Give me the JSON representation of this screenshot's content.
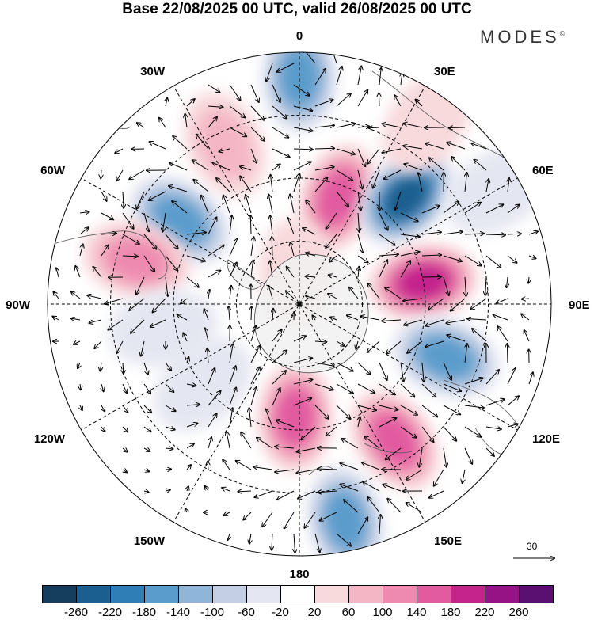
{
  "title": "Base 22/08/2025 00 UTC, valid 26/08/2025 00 UTC",
  "brand": {
    "name": "MODES",
    "mark": "©"
  },
  "longitude_labels": [
    {
      "id": "0",
      "text": "0"
    },
    {
      "id": "30e",
      "text": "30E"
    },
    {
      "id": "60e",
      "text": "60E"
    },
    {
      "id": "90e",
      "text": "90E"
    },
    {
      "id": "120e",
      "text": "120E"
    },
    {
      "id": "150e",
      "text": "150E"
    },
    {
      "id": "180",
      "text": "180"
    },
    {
      "id": "150w",
      "text": "150W"
    },
    {
      "id": "120w",
      "text": "120W"
    },
    {
      "id": "90w",
      "text": "90W"
    },
    {
      "id": "60w",
      "text": "60W"
    },
    {
      "id": "30w",
      "text": "30W"
    }
  ],
  "vector_reference": {
    "value": "30"
  },
  "colorbar": {
    "colors": [
      "#143d5e",
      "#1a5f8f",
      "#2f7fb6",
      "#5a9ccc",
      "#8fb5d8",
      "#c4cfe5",
      "#e4e6f1",
      "#ffffff",
      "#f8d9dc",
      "#f4b6c4",
      "#ee8ab0",
      "#e25aa0",
      "#c4248c",
      "#951384",
      "#5a1070"
    ],
    "ticks": [
      "-260",
      "-220",
      "-180",
      "-140",
      "-100",
      "-60",
      "-20",
      "20",
      "60",
      "100",
      "140",
      "180",
      "220",
      "260"
    ]
  },
  "anomaly_centers": [
    {
      "id": "c01",
      "value": -160,
      "lon": 0,
      "colat": 0.9
    },
    {
      "id": "c02",
      "value": 80,
      "lon": -25,
      "colat": 0.7
    },
    {
      "id": "c03",
      "value": -170,
      "lon": -55,
      "colat": 0.58
    },
    {
      "id": "c04",
      "value": 140,
      "lon": 20,
      "colat": 0.45
    },
    {
      "id": "c05",
      "value": -240,
      "lon": 45,
      "colat": 0.6
    },
    {
      "id": "c06",
      "value": 200,
      "lon": 80,
      "colat": 0.5
    },
    {
      "id": "c07",
      "value": -170,
      "lon": 110,
      "colat": 0.62
    },
    {
      "id": "c08",
      "value": 160,
      "lon": 145,
      "colat": 0.66
    },
    {
      "id": "c09",
      "value": -160,
      "lon": 168,
      "colat": 0.88
    },
    {
      "id": "c10",
      "value": 150,
      "lon": -178,
      "colat": 0.45
    },
    {
      "id": "c11",
      "value": 110,
      "lon": -75,
      "colat": 0.67
    },
    {
      "id": "c12",
      "value": -50,
      "lon": -100,
      "colat": 0.55
    },
    {
      "id": "c13",
      "value": -40,
      "lon": -130,
      "colat": 0.5
    },
    {
      "id": "c14",
      "value": 30,
      "lon": -5,
      "colat": 0.12
    },
    {
      "id": "c15",
      "value": -30,
      "lon": 60,
      "colat": 0.9
    },
    {
      "id": "c16",
      "value": 40,
      "lon": 35,
      "colat": 0.88
    }
  ]
}
